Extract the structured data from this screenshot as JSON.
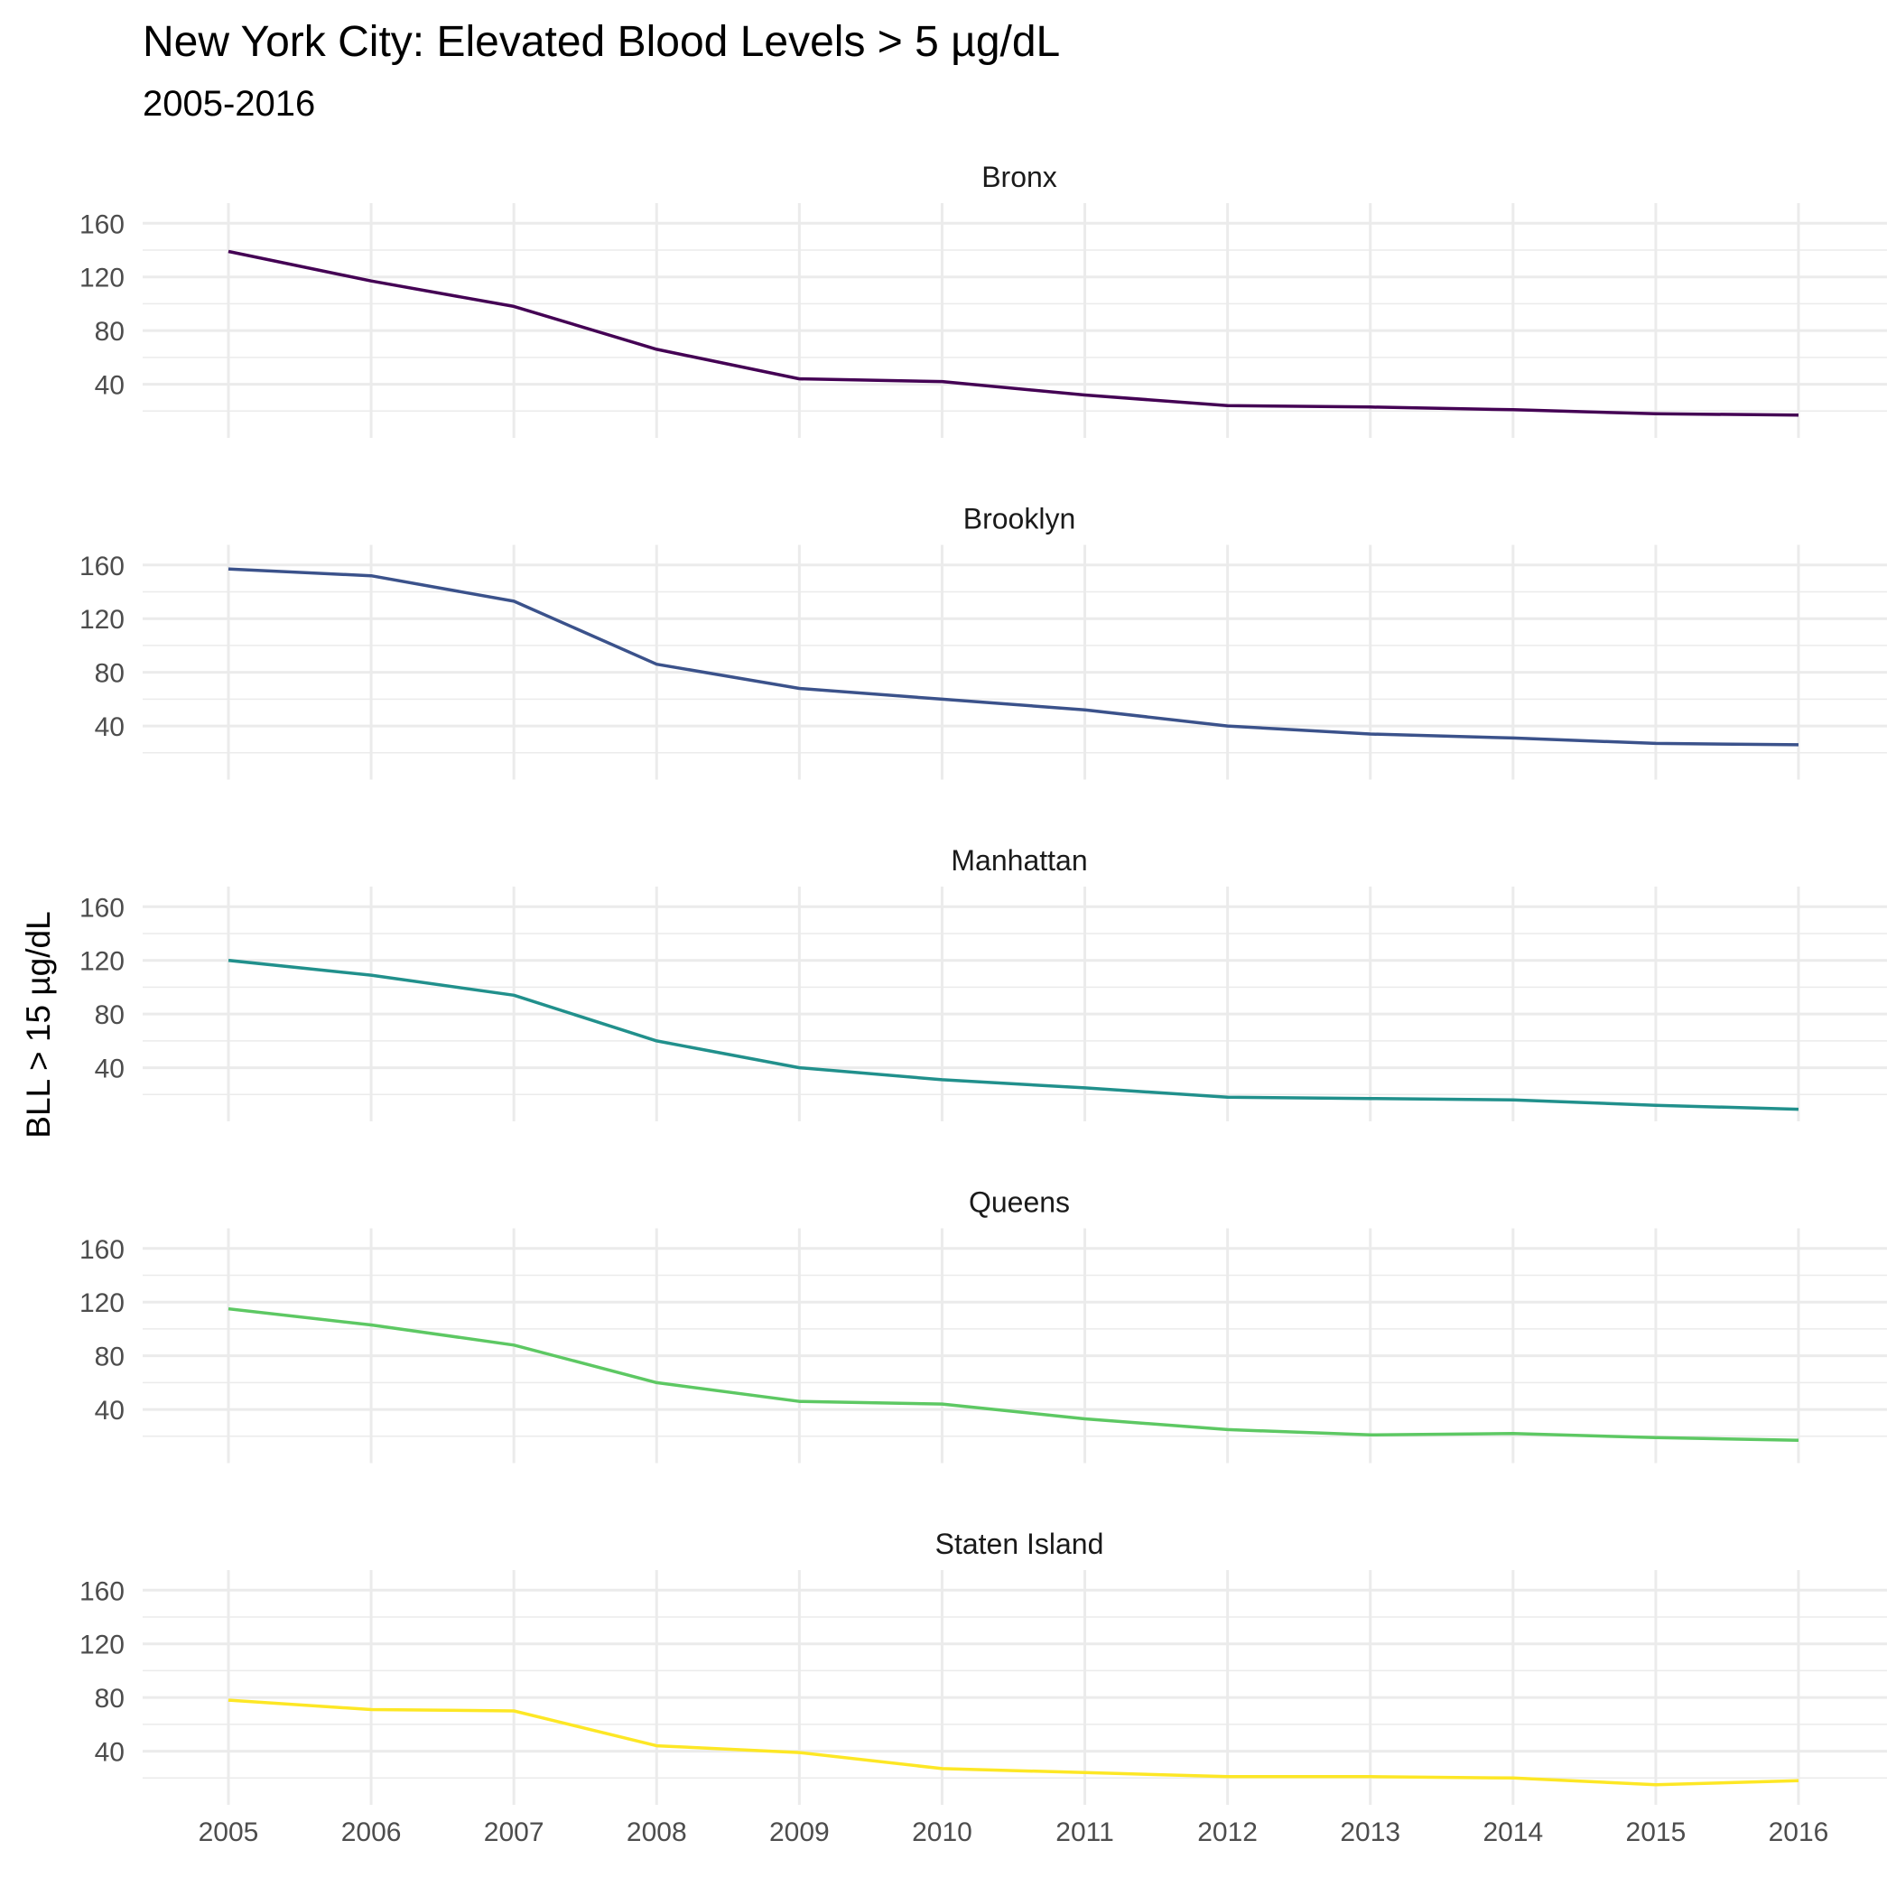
{
  "chart_data": {
    "type": "line",
    "title": "New York City: Elevated Blood Levels > 5 µg/dL",
    "subtitle": "2005-2016",
    "xlabel": "",
    "ylabel": "BLL > 15 µg/dL",
    "x": [
      2005,
      2006,
      2007,
      2008,
      2009,
      2010,
      2011,
      2012,
      2013,
      2014,
      2015,
      2016
    ],
    "x_tick_labels": [
      "2005",
      "2006",
      "2007",
      "2008",
      "2009",
      "2010",
      "2011",
      "2012",
      "2013",
      "2014",
      "2015",
      "2016"
    ],
    "y_ticks": [
      40,
      80,
      120,
      160
    ],
    "y_tick_labels": [
      "40",
      "80",
      "120",
      "160"
    ],
    "ylim": [
      0,
      175
    ],
    "grid": true,
    "facets": [
      {
        "name": "Bronx",
        "color": "#440154",
        "values": [
          139,
          117,
          98,
          66,
          44,
          42,
          32,
          24,
          23,
          21,
          18,
          17
        ]
      },
      {
        "name": "Brooklyn",
        "color": "#3B528B",
        "values": [
          157,
          152,
          133,
          86,
          68,
          60,
          52,
          40,
          34,
          31,
          27,
          26
        ]
      },
      {
        "name": "Manhattan",
        "color": "#21908C",
        "values": [
          120,
          109,
          94,
          60,
          40,
          31,
          25,
          18,
          17,
          16,
          12,
          9
        ]
      },
      {
        "name": "Queens",
        "color": "#5DC863",
        "values": [
          115,
          103,
          88,
          60,
          46,
          44,
          33,
          25,
          21,
          22,
          19,
          17
        ]
      },
      {
        "name": "Staten Island",
        "color": "#FDE725",
        "values": [
          78,
          71,
          70,
          44,
          39,
          27,
          24,
          21,
          21,
          20,
          15,
          18
        ]
      }
    ]
  }
}
